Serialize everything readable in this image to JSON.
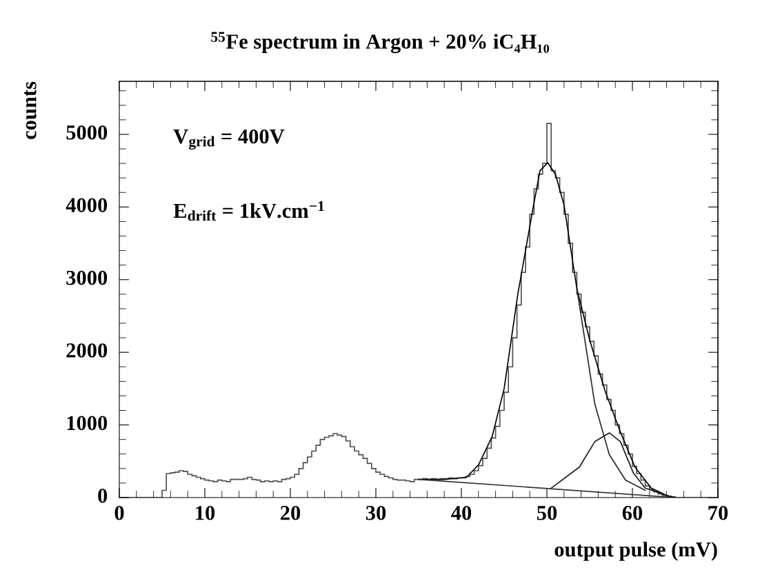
{
  "chart_data": {
    "type": "histogram",
    "title": "$^{55}$Fe spectrum in Argon + 20% iC₄H₁₀",
    "xlabel": "output pulse (mV)",
    "ylabel": "counts",
    "bins": [
      0,
      0.5,
      1,
      1.5,
      2,
      2.5,
      3,
      3.5,
      4,
      4.5,
      5,
      5.5,
      6,
      6.5,
      7,
      7.5,
      8,
      8.5,
      9,
      9.5,
      10,
      10.5,
      11,
      11.5,
      12,
      12.5,
      13,
      13.5,
      14,
      14.5,
      15,
      15.5,
      16,
      16.5,
      17,
      17.5,
      18,
      18.5,
      19,
      19.5,
      20,
      20.5,
      21,
      21.5,
      22,
      22.5,
      23,
      23.5,
      24,
      24.5,
      25,
      25.5,
      26,
      26.5,
      27,
      27.5,
      28,
      28.5,
      29,
      29.5,
      30,
      30.5,
      31,
      31.5,
      32,
      32.5,
      33,
      33.5,
      34,
      34.5,
      35,
      35.5,
      36,
      36.5,
      37,
      37.5,
      38,
      38.5,
      39,
      39.5,
      40,
      40.5,
      41,
      41.5,
      42,
      42.5,
      43,
      43.5,
      44,
      44.5,
      45,
      45.5,
      46,
      46.5,
      47,
      47.5,
      48,
      48.5,
      49,
      49.5,
      50,
      50.5,
      51,
      51.5,
      52,
      52.5,
      53,
      53.5,
      54,
      54.5,
      55,
      55.5,
      56,
      56.5,
      57,
      57.5,
      58,
      58.5,
      59,
      59.5,
      60,
      60.5,
      61,
      61.5,
      62,
      62.5,
      63,
      63.5,
      64,
      64.5,
      65,
      65.5,
      66,
      66.5,
      67,
      67.5,
      68,
      68.5,
      69,
      69.5,
      70
    ],
    "values": [
      0,
      0,
      0,
      0,
      0,
      0,
      0,
      0,
      0,
      0,
      100,
      330,
      340,
      350,
      370,
      360,
      320,
      300,
      280,
      260,
      240,
      230,
      220,
      240,
      230,
      220,
      250,
      250,
      250,
      260,
      280,
      250,
      240,
      220,
      230,
      220,
      230,
      220,
      250,
      260,
      280,
      320,
      400,
      480,
      560,
      640,
      720,
      800,
      830,
      850,
      880,
      860,
      840,
      780,
      700,
      640,
      590,
      540,
      470,
      400,
      350,
      320,
      290,
      270,
      250,
      240,
      240,
      230,
      220,
      250,
      250,
      260,
      250,
      260,
      250,
      260,
      260,
      270,
      260,
      270,
      270,
      290,
      320,
      370,
      440,
      540,
      680,
      820,
      980,
      1200,
      1450,
      1800,
      2200,
      2650,
      3100,
      3450,
      3900,
      4250,
      4450,
      4600,
      5150,
      4500,
      4400,
      4200,
      3900,
      3500,
      3100,
      2800,
      2550,
      2350,
      2150,
      1950,
      1700,
      1550,
      1350,
      1200,
      1000,
      880,
      720,
      600,
      430,
      330,
      240,
      160,
      110,
      80,
      50,
      30,
      20,
      10,
      0,
      0,
      0,
      0,
      0,
      0,
      0,
      0,
      0,
      0
    ],
    "color": "#4d4d4d",
    "series": [
      {
        "type": "line",
        "color": "#000000",
        "x": [
          35,
          38,
          40.6,
          42,
          43.6,
          45,
          46.6,
          48.4,
          49.2,
          50.1,
          51,
          52,
          53.5,
          55,
          56.8,
          58.6,
          60.3,
          62.2,
          64,
          65
        ],
        "values": [
          250,
          250,
          280,
          450,
          840,
          1500,
          2800,
          4000,
          4500,
          4610,
          4450,
          4030,
          2880,
          2170,
          1470,
          900,
          420,
          130,
          30,
          0
        ]
      },
      {
        "type": "line",
        "color": "#262626",
        "x": [
          53.5,
          55.6,
          57.3,
          59.2,
          61.5
        ],
        "values": [
          2880,
          1290,
          590,
          240,
          100
        ]
      },
      {
        "type": "line",
        "color": "#1a1a1a",
        "x": [
          50.5,
          53.8,
          55.6,
          57.3,
          58.6,
          60.1,
          61.5,
          64
        ],
        "values": [
          130,
          420,
          770,
          890,
          770,
          340,
          130,
          30
        ]
      },
      {
        "type": "line",
        "color": "#333333",
        "x": [
          35,
          65
        ],
        "values": [
          250,
          0
        ]
      }
    ],
    "xlim": [
      0,
      70
    ],
    "xticks": [
      0,
      10,
      20,
      30,
      40,
      50,
      60,
      70
    ],
    "ylim": [
      0,
      5730
    ],
    "yticks": [
      0,
      1000,
      2000,
      3000,
      4000,
      5000
    ],
    "annotations": [
      "V$_{grid}$ = 400V",
      "E$_{drift}$ = 1kV.cm$^{−1}$"
    ],
    "grid": false,
    "legend": false
  }
}
